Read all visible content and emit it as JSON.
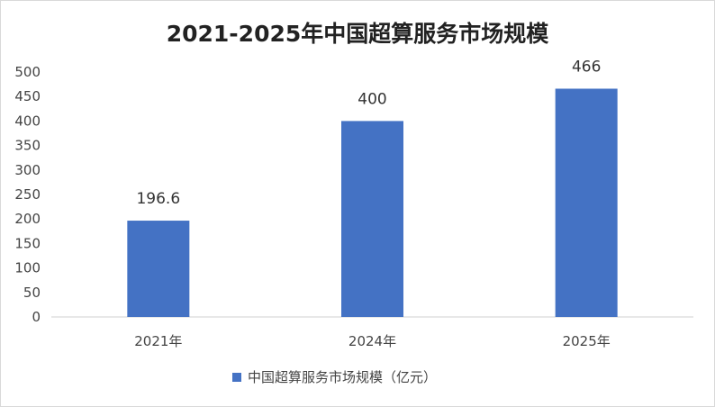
{
  "chart_data": {
    "type": "bar",
    "title": "2021-2025年中国超算服务市场规模",
    "categories": [
      "2021年",
      "2024年",
      "2025年"
    ],
    "series": [
      {
        "name": "中国超算服务市场规模（亿元）",
        "values": [
          196.6,
          400,
          466
        ],
        "color": "#4472C4"
      }
    ],
    "data_labels": [
      "196.6",
      "400",
      "466"
    ],
    "yticks": [
      "0",
      "50",
      "100",
      "150",
      "200",
      "250",
      "300",
      "350",
      "400",
      "450",
      "500"
    ],
    "ylim": [
      0,
      500
    ],
    "xlabel": "",
    "ylabel": "",
    "grid": false,
    "legend_position": "bottom"
  }
}
